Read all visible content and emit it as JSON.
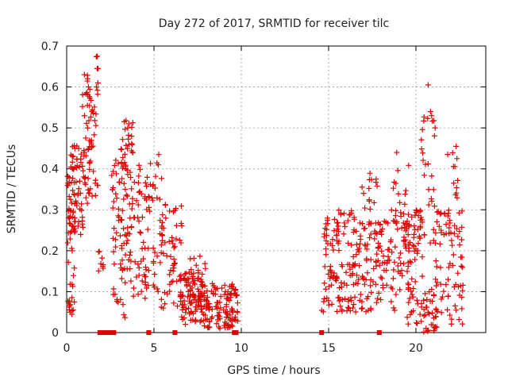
{
  "chart_data": {
    "type": "scatter",
    "title": "Day 272 of 2017, SRMTID for receiver tilc",
    "xlabel": "GPS time / hours",
    "ylabel": "SRMTID / TECUs",
    "xlim": [
      0,
      24
    ],
    "ylim": [
      0,
      0.7
    ],
    "xticks": [
      0,
      5,
      10,
      15,
      20
    ],
    "yticks": [
      0,
      0.1,
      0.2,
      0.3,
      0.4,
      0.5,
      0.6,
      0.7
    ],
    "xtick_labels": [
      "0",
      "5",
      "10",
      "15",
      "20"
    ],
    "ytick_labels": [
      "0",
      "0.1",
      "0.2",
      "0.3",
      "0.4",
      "0.5",
      "0.6",
      "0.7"
    ],
    "grid": true,
    "marker": "+",
    "color": "#e00000",
    "zero_markers_x": [
      1.9,
      2.1,
      2.3,
      2.5,
      2.7,
      4.7,
      6.2,
      9.6,
      9.7,
      14.6,
      17.9
    ],
    "clusters": [
      {
        "x": [
          0.0,
          0.5
        ],
        "y": [
          0.05,
          0.4
        ],
        "n": 45
      },
      {
        "x": [
          0.2,
          1.0
        ],
        "y": [
          0.22,
          0.46
        ],
        "n": 60
      },
      {
        "x": [
          0.9,
          1.8
        ],
        "y": [
          0.3,
          0.6
        ],
        "n": 55
      },
      {
        "x": [
          1.0,
          1.8
        ],
        "y": [
          0.45,
          0.68
        ],
        "n": 14
      },
      {
        "x": [
          1.7,
          2.1
        ],
        "y": [
          0.15,
          0.22
        ],
        "n": 8
      },
      {
        "x": [
          2.5,
          3.6
        ],
        "y": [
          0.15,
          0.45
        ],
        "n": 60
      },
      {
        "x": [
          3.0,
          3.8
        ],
        "y": [
          0.3,
          0.52
        ],
        "n": 30
      },
      {
        "x": [
          2.6,
          3.4
        ],
        "y": [
          0.03,
          0.15
        ],
        "n": 12
      },
      {
        "x": [
          3.6,
          4.6
        ],
        "y": [
          0.08,
          0.42
        ],
        "n": 55
      },
      {
        "x": [
          4.5,
          5.5
        ],
        "y": [
          0.1,
          0.45
        ],
        "n": 45
      },
      {
        "x": [
          5.4,
          6.6
        ],
        "y": [
          0.05,
          0.32
        ],
        "n": 55
      },
      {
        "x": [
          6.5,
          7.8
        ],
        "y": [
          0.02,
          0.15
        ],
        "n": 90
      },
      {
        "x": [
          7.0,
          8.0
        ],
        "y": [
          0.08,
          0.19
        ],
        "n": 25
      },
      {
        "x": [
          7.8,
          9.8
        ],
        "y": [
          0.01,
          0.12
        ],
        "n": 120
      },
      {
        "x": [
          14.6,
          15.5
        ],
        "y": [
          0.05,
          0.3
        ],
        "n": 50
      },
      {
        "x": [
          15.4,
          16.5
        ],
        "y": [
          0.05,
          0.3
        ],
        "n": 60
      },
      {
        "x": [
          16.4,
          17.8
        ],
        "y": [
          0.05,
          0.28
        ],
        "n": 70
      },
      {
        "x": [
          16.8,
          17.8
        ],
        "y": [
          0.22,
          0.4
        ],
        "n": 18
      },
      {
        "x": [
          17.8,
          19.6
        ],
        "y": [
          0.05,
          0.3
        ],
        "n": 80
      },
      {
        "x": [
          18.6,
          19.6
        ],
        "y": [
          0.25,
          0.44
        ],
        "n": 20
      },
      {
        "x": [
          19.5,
          20.5
        ],
        "y": [
          0.02,
          0.3
        ],
        "n": 70
      },
      {
        "x": [
          20.3,
          21.1
        ],
        "y": [
          0.2,
          0.54
        ],
        "n": 25
      },
      {
        "x": [
          20.4,
          21.2
        ],
        "y": [
          0.0,
          0.12
        ],
        "n": 30
      },
      {
        "x": [
          21.0,
          22.7
        ],
        "y": [
          0.02,
          0.3
        ],
        "n": 80
      },
      {
        "x": [
          21.8,
          22.4
        ],
        "y": [
          0.28,
          0.46
        ],
        "n": 10
      }
    ],
    "outliers": [
      [
        1.75,
        0.675
      ],
      [
        1.75,
        0.645
      ],
      [
        1.2,
        0.62
      ],
      [
        1.25,
        0.6
      ],
      [
        1.7,
        0.6
      ],
      [
        20.7,
        0.605
      ],
      [
        20.9,
        0.53
      ],
      [
        21.1,
        0.5
      ],
      [
        3.3,
        0.515
      ],
      [
        3.5,
        0.5
      ],
      [
        18.9,
        0.44
      ],
      [
        22.3,
        0.455
      ],
      [
        22.35,
        0.425
      ],
      [
        0.2,
        0.05
      ],
      [
        0.3,
        0.045
      ]
    ]
  }
}
